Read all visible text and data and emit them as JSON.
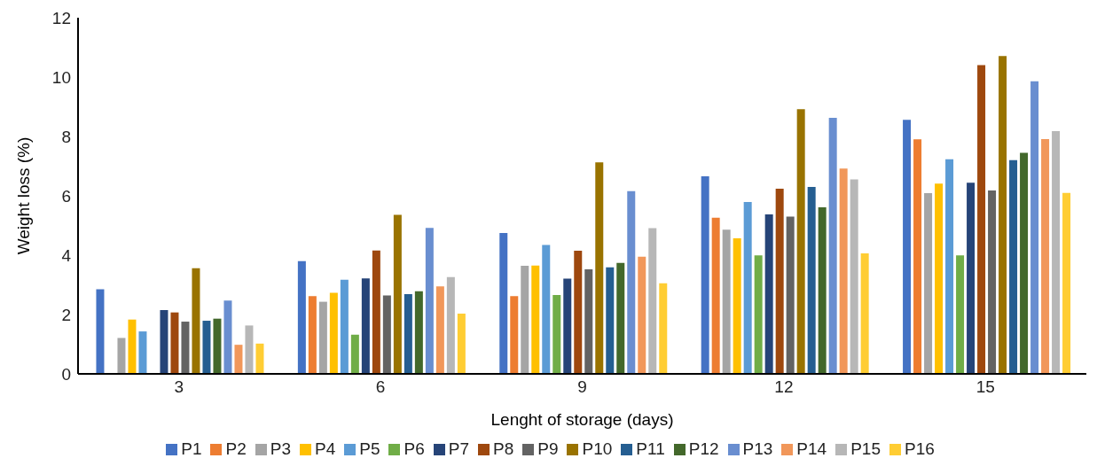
{
  "chart_data": {
    "type": "bar",
    "xlabel": "Lenght of storage (days)",
    "ylabel": "Weight loss (%)",
    "categories": [
      "3",
      "6",
      "9",
      "12",
      "15"
    ],
    "ylim": [
      0,
      12
    ],
    "yticks": [
      0,
      2,
      4,
      6,
      8,
      10,
      12
    ],
    "grid": false,
    "legend": "bottom",
    "series": [
      {
        "name": "P1",
        "color": "#4472c4",
        "values": [
          2.85,
          3.8,
          4.75,
          6.66,
          8.56
        ]
      },
      {
        "name": "P2",
        "color": "#ed7d31",
        "values": [
          null,
          2.62,
          2.62,
          5.26,
          7.9
        ]
      },
      {
        "name": "P3",
        "color": "#a5a5a5",
        "values": [
          1.21,
          2.43,
          3.64,
          4.86,
          6.09
        ]
      },
      {
        "name": "P4",
        "color": "#ffc000",
        "values": [
          1.83,
          2.73,
          3.65,
          4.57,
          6.41
        ]
      },
      {
        "name": "P5",
        "color": "#5b9bd5",
        "values": [
          1.43,
          3.17,
          4.34,
          5.79,
          7.23
        ]
      },
      {
        "name": "P6",
        "color": "#70ad47",
        "values": [
          null,
          1.32,
          2.66,
          3.99,
          3.99
        ]
      },
      {
        "name": "P7",
        "color": "#264478",
        "values": [
          2.15,
          3.22,
          3.21,
          5.37,
          6.44
        ]
      },
      {
        "name": "P8",
        "color": "#9e480e",
        "values": [
          2.07,
          4.16,
          4.15,
          6.24,
          10.4
        ]
      },
      {
        "name": "P9",
        "color": "#636363",
        "values": [
          1.76,
          2.64,
          3.52,
          5.3,
          6.18
        ]
      },
      {
        "name": "P10",
        "color": "#997300",
        "values": [
          3.56,
          5.36,
          7.13,
          8.92,
          10.71
        ]
      },
      {
        "name": "P11",
        "color": "#255e91",
        "values": [
          1.79,
          2.69,
          3.59,
          6.3,
          7.2
        ]
      },
      {
        "name": "P12",
        "color": "#43682b",
        "values": [
          1.86,
          2.78,
          3.74,
          5.61,
          7.45
        ]
      },
      {
        "name": "P13",
        "color": "#698ed0",
        "values": [
          2.47,
          4.92,
          6.16,
          8.63,
          9.86
        ]
      },
      {
        "name": "P14",
        "color": "#f1975a",
        "values": [
          0.98,
          2.95,
          3.95,
          6.92,
          7.91
        ]
      },
      {
        "name": "P15",
        "color": "#b7b7b7",
        "values": [
          1.63,
          3.26,
          4.91,
          6.55,
          8.18
        ]
      },
      {
        "name": "P16",
        "color": "#ffcd33",
        "values": [
          1.02,
          2.03,
          3.05,
          4.06,
          6.1
        ]
      }
    ]
  }
}
